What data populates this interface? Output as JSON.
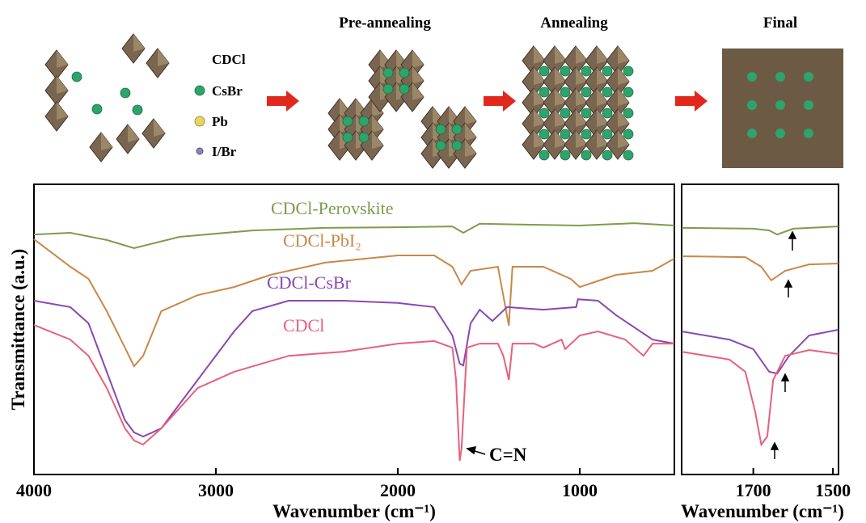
{
  "schematic": {
    "stages": [
      "Pre-annealing",
      "Annealing",
      "Final"
    ],
    "legend": [
      "CDCl",
      "CsBr",
      "Pb",
      "I/Br"
    ]
  },
  "chart_data": [
    {
      "type": "line",
      "xlabel": "Wavenumber (cm⁻¹)",
      "ylabel": "Transmittance (a.u.)",
      "annotation": "C=N",
      "xlim": [
        4000,
        480
      ],
      "xticks": [
        4000,
        3000,
        2000,
        1000
      ],
      "ylim": [
        0,
        100
      ],
      "series": [
        {
          "name": "CDCl-Perovskite",
          "color": "#7d9c4c",
          "x": [
            4000,
            3800,
            3600,
            3450,
            3200,
            2800,
            2400,
            2000,
            1700,
            1640,
            1550,
            1300,
            1000,
            700,
            480
          ],
          "values": [
            82.7,
            83.3,
            80.8,
            78.0,
            81.9,
            84.1,
            85.0,
            85.2,
            85.5,
            83.3,
            86.4,
            86.1,
            85.8,
            86.6,
            85.8
          ]
        },
        {
          "name": "CDCl-PbI₂",
          "color": "#c98848",
          "x": [
            4000,
            3800,
            3700,
            3600,
            3500,
            3450,
            3400,
            3300,
            3100,
            2900,
            2700,
            2400,
            2000,
            1800,
            1700,
            1650,
            1600,
            1450,
            1390,
            1370,
            1200,
            1050,
            1000,
            800,
            600,
            480
          ],
          "values": [
            81.1,
            71.6,
            67.4,
            56.3,
            43.7,
            37.3,
            40.9,
            56.3,
            61.8,
            64.6,
            68.8,
            73.0,
            75.5,
            75.5,
            71.6,
            65.5,
            70.2,
            71.6,
            51.3,
            71.6,
            71.6,
            67.4,
            64.6,
            68.8,
            70.2,
            74.4
          ]
        },
        {
          "name": "CDCl-CsBr",
          "color": "#8a48b0",
          "x": [
            4000,
            3800,
            3700,
            3600,
            3500,
            3450,
            3400,
            3300,
            3100,
            2900,
            2800,
            2600,
            2300,
            2000,
            1800,
            1700,
            1660,
            1640,
            1600,
            1550,
            1480,
            1400,
            1200,
            1020,
            1010,
            900,
            800,
            600,
            480
          ],
          "values": [
            59.9,
            57.7,
            52.1,
            35.4,
            18.7,
            14.5,
            13.1,
            15.9,
            32.6,
            49.3,
            56.3,
            59.9,
            59.9,
            59.1,
            57.7,
            47.9,
            38.2,
            37.6,
            52.1,
            56.8,
            52.9,
            57.7,
            56.8,
            57.7,
            60.4,
            59.9,
            54.9,
            46.5,
            45.1
          ]
        },
        {
          "name": "CDCl",
          "color": "#e8607c",
          "x": [
            4000,
            3800,
            3700,
            3600,
            3500,
            3450,
            3400,
            3300,
            3100,
            2900,
            2600,
            2300,
            2000,
            1800,
            1700,
            1680,
            1660,
            1650,
            1620,
            1550,
            1450,
            1420,
            1390,
            1370,
            1250,
            1200,
            1100,
            1080,
            1000,
            900,
            750,
            650,
            600,
            480
          ],
          "values": [
            51.5,
            46.5,
            40.9,
            29.8,
            15.9,
            11.7,
            10.3,
            15.9,
            29.8,
            35.4,
            40.9,
            42.3,
            45.1,
            46.0,
            43.7,
            32.6,
            4.7,
            8.9,
            43.7,
            45.1,
            45.1,
            40.9,
            32.6,
            45.1,
            45.1,
            43.7,
            46.5,
            43.2,
            47.9,
            49.3,
            46.5,
            40.9,
            45.1,
            45.1
          ]
        }
      ]
    },
    {
      "type": "line",
      "xlabel": "Wavenumber (cm⁻¹)",
      "xlim": [
        1880,
        1486
      ],
      "xticks": [
        1700,
        1500
      ],
      "ylim": [
        0,
        100
      ],
      "series": [
        {
          "color": "#7d9c4c",
          "x": [
            1880,
            1700,
            1660,
            1640,
            1600,
            1486
          ],
          "values": [
            85.0,
            84.7,
            84.1,
            82.7,
            84.7,
            85.5
          ]
        },
        {
          "color": "#c98848",
          "x": [
            1880,
            1720,
            1680,
            1655,
            1620,
            1560,
            1486
          ],
          "values": [
            75.2,
            74.9,
            71.6,
            66.9,
            70.2,
            72.4,
            72.7
          ]
        },
        {
          "color": "#8a48b0",
          "x": [
            1880,
            1760,
            1700,
            1660,
            1640,
            1610,
            1560,
            1486
          ],
          "values": [
            49.3,
            46.5,
            43.2,
            35.4,
            34.8,
            40.9,
            47.9,
            49.9
          ]
        },
        {
          "color": "#e8607c",
          "x": [
            1880,
            1760,
            1720,
            1695,
            1680,
            1665,
            1650,
            1620,
            1560,
            1486
          ],
          "values": [
            42.3,
            39.6,
            35.4,
            21.4,
            10.3,
            13.1,
            32.6,
            40.9,
            42.9,
            41.5
          ]
        }
      ]
    }
  ]
}
